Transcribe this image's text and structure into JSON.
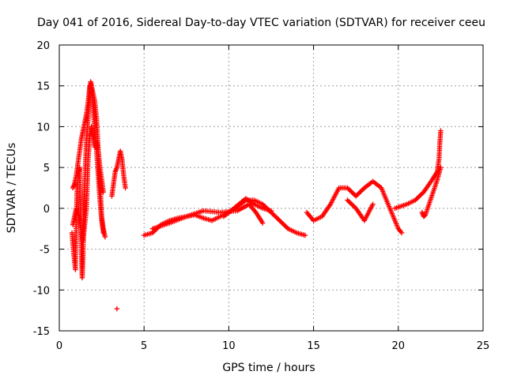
{
  "chart_data": {
    "type": "scatter",
    "title": "Day 041 of 2016, Sidereal Day-to-day VTEC variation (SDTVAR) for receiver ceeu",
    "xlabel": "GPS time / hours",
    "ylabel": "SDTVAR / TECUs",
    "xlim": [
      0,
      25
    ],
    "ylim": [
      -15,
      20
    ],
    "xticks": [
      "0",
      "5",
      "10",
      "15",
      "20",
      "25"
    ],
    "yticks": [
      "-15",
      "-10",
      "-5",
      "0",
      "5",
      "10",
      "15",
      "20"
    ],
    "grid": true,
    "marker": "+",
    "color": "#ff0000",
    "series": [
      {
        "name": "SDTVAR",
        "segments": [
          [
            [
              0.75,
              -3.0
            ],
            [
              0.85,
              -5.5
            ],
            [
              0.95,
              -7.5
            ],
            [
              1.0,
              -2.0
            ],
            [
              1.05,
              2.5
            ],
            [
              1.15,
              4.5
            ],
            [
              1.2,
              5.0
            ],
            [
              1.25,
              -1.0
            ],
            [
              1.3,
              -5.0
            ],
            [
              1.35,
              -8.5
            ],
            [
              1.4,
              -6.0
            ],
            [
              1.45,
              1.0
            ],
            [
              1.5,
              3.0
            ],
            [
              1.6,
              8.5
            ],
            [
              1.7,
              11.0
            ],
            [
              1.8,
              14.5
            ],
            [
              1.85,
              15.5
            ],
            [
              1.9,
              15.0
            ],
            [
              2.0,
              14.0
            ],
            [
              2.1,
              13.0
            ],
            [
              2.2,
              11.0
            ],
            [
              2.3,
              7.0
            ],
            [
              2.4,
              3.0
            ],
            [
              2.5,
              -1.0
            ],
            [
              2.6,
              -2.5
            ],
            [
              2.7,
              -3.5
            ]
          ],
          [
            [
              0.8,
              2.5
            ],
            [
              0.9,
              3.0
            ],
            [
              1.0,
              4.0
            ],
            [
              1.1,
              5.5
            ],
            [
              1.2,
              7.0
            ],
            [
              1.3,
              8.5
            ],
            [
              1.4,
              9.5
            ],
            [
              1.5,
              10.5
            ],
            [
              1.6,
              11.5
            ],
            [
              1.7,
              13.0
            ],
            [
              1.8,
              15.0
            ],
            [
              1.9,
              14.5
            ],
            [
              2.0,
              12.0
            ],
            [
              2.1,
              9.5
            ],
            [
              2.2,
              7.0
            ],
            [
              2.3,
              4.0
            ],
            [
              2.4,
              1.0
            ],
            [
              2.5,
              -1.5
            ],
            [
              2.6,
              -3.0
            ]
          ],
          [
            [
              0.8,
              -2.0
            ],
            [
              0.9,
              -1.0
            ],
            [
              1.0,
              0.0
            ],
            [
              1.1,
              -0.5
            ],
            [
              1.2,
              -1.5
            ],
            [
              1.3,
              -3.0
            ],
            [
              1.4,
              -4.0
            ],
            [
              1.5,
              -2.0
            ],
            [
              1.6,
              0.0
            ],
            [
              1.7,
              6.0
            ],
            [
              1.8,
              9.0
            ],
            [
              1.9,
              10.0
            ],
            [
              2.0,
              8.5
            ],
            [
              2.1,
              7.5
            ],
            [
              2.2,
              8.0
            ],
            [
              2.3,
              7.0
            ],
            [
              2.4,
              5.0
            ],
            [
              2.5,
              3.5
            ],
            [
              2.6,
              2.0
            ]
          ],
          [
            [
              3.1,
              1.5
            ],
            [
              3.2,
              3.0
            ],
            [
              3.3,
              4.5
            ],
            [
              3.4,
              5.0
            ],
            [
              3.5,
              6.0
            ],
            [
              3.6,
              7.0
            ],
            [
              3.7,
              6.0
            ],
            [
              3.8,
              4.0
            ],
            [
              3.9,
              2.5
            ]
          ],
          [
            [
              3.4,
              -12.3
            ]
          ],
          [
            [
              5.0,
              -3.3
            ],
            [
              5.5,
              -3.0
            ],
            [
              6.0,
              -2.0
            ],
            [
              6.5,
              -1.5
            ],
            [
              7.0,
              -1.2
            ],
            [
              7.5,
              -1.0
            ],
            [
              8.0,
              -0.8
            ],
            [
              8.5,
              -1.2
            ],
            [
              9.0,
              -1.5
            ],
            [
              9.5,
              -1.0
            ],
            [
              10.0,
              -0.5
            ],
            [
              10.5,
              0.2
            ],
            [
              11.0,
              1.0
            ],
            [
              11.5,
              1.0
            ],
            [
              12.0,
              0.5
            ],
            [
              12.5,
              -0.5
            ],
            [
              13.0,
              -1.5
            ],
            [
              13.5,
              -2.5
            ],
            [
              14.0,
              -3.0
            ],
            [
              14.5,
              -3.3
            ]
          ],
          [
            [
              5.5,
              -2.5
            ],
            [
              6.5,
              -1.8
            ],
            [
              7.5,
              -1.0
            ],
            [
              8.5,
              -0.3
            ],
            [
              9.5,
              -0.5
            ],
            [
              10.5,
              -0.3
            ],
            [
              11.2,
              0.5
            ],
            [
              11.6,
              -0.5
            ],
            [
              12.0,
              -1.8
            ]
          ],
          [
            [
              9.7,
              -1.0
            ],
            [
              10.3,
              0.0
            ],
            [
              11.0,
              1.2
            ],
            [
              11.5,
              0.5
            ],
            [
              12.0,
              0.0
            ],
            [
              12.5,
              -0.3
            ]
          ],
          [
            [
              14.6,
              -0.5
            ],
            [
              15.0,
              -1.5
            ],
            [
              15.5,
              -1.0
            ],
            [
              16.0,
              0.5
            ],
            [
              16.5,
              2.5
            ],
            [
              17.0,
              2.5
            ],
            [
              17.5,
              1.5
            ],
            [
              18.0,
              2.5
            ],
            [
              18.5,
              3.3
            ],
            [
              19.0,
              2.5
            ],
            [
              19.5,
              0.0
            ],
            [
              20.0,
              -2.5
            ],
            [
              20.2,
              -3.0
            ]
          ],
          [
            [
              17.0,
              1.0
            ],
            [
              17.5,
              0.0
            ],
            [
              18.0,
              -1.5
            ],
            [
              18.5,
              0.5
            ]
          ],
          [
            [
              19.8,
              0.0
            ],
            [
              20.5,
              0.5
            ],
            [
              21.0,
              1.0
            ],
            [
              21.5,
              2.0
            ],
            [
              22.0,
              3.5
            ],
            [
              22.3,
              4.5
            ],
            [
              22.4,
              6.0
            ],
            [
              22.45,
              8.0
            ],
            [
              22.5,
              9.5
            ]
          ],
          [
            [
              21.4,
              -0.5
            ],
            [
              21.5,
              -1.0
            ],
            [
              21.6,
              -0.8
            ],
            [
              22.3,
              3.5
            ],
            [
              22.5,
              5.0
            ]
          ]
        ]
      }
    ]
  }
}
